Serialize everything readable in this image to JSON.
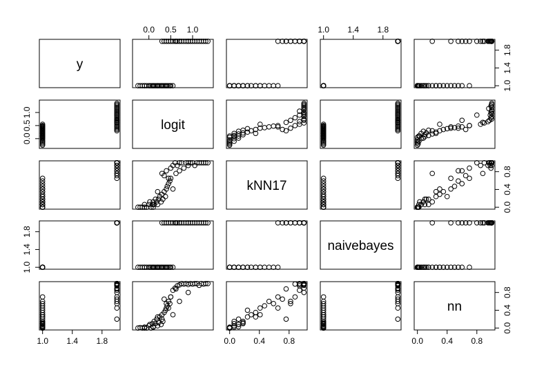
{
  "chart_data": {
    "type": "scatter",
    "plot_kind": "scatterplot-matrix",
    "variables": [
      "y",
      "logit",
      "kNN17",
      "naivebayes",
      "nn"
    ],
    "axes": {
      "y": {
        "range": [
          1,
          2
        ],
        "ticks": [
          1.0,
          1.4,
          1.8
        ],
        "tick_labels": [
          "1.0",
          "1.4",
          "1.8"
        ]
      },
      "logit": {
        "range": [
          -0.3,
          1.4
        ],
        "ticks": [
          0.0,
          0.5,
          1.0
        ],
        "tick_labels": [
          "0.0",
          "0.5",
          "1.0"
        ]
      },
      "kNN17": {
        "range": [
          0,
          1
        ],
        "ticks": [
          0.0,
          0.4,
          0.8
        ],
        "tick_labels": [
          "0.0",
          "0.4",
          "0.8"
        ]
      },
      "naivebayes": {
        "range": [
          1,
          2
        ],
        "ticks": [
          1.0,
          1.4,
          1.8
        ],
        "tick_labels": [
          "1.0",
          "1.4",
          "1.8"
        ]
      },
      "nn": {
        "range": [
          0,
          1
        ],
        "ticks": [
          0.0,
          0.4,
          0.8
        ],
        "tick_labels": [
          "0.0",
          "0.4",
          "0.8"
        ]
      }
    },
    "axis_tick_layout": {
      "top_labels": [
        "0.0",
        "0.5",
        "1.0",
        "1.0",
        "1.4",
        "1.8"
      ],
      "bottom_labels": [
        "1.0",
        "1.4",
        "1.8",
        "0.0",
        "0.4",
        "0.8",
        "0.0",
        "0.4",
        "0.8"
      ],
      "left_labels": [
        "0.0",
        "0.5",
        "1.0",
        "1.0",
        "1.4",
        "1.8"
      ],
      "right_labels": [
        "1.0",
        "1.4",
        "1.8",
        "0.0",
        "0.4",
        "0.8",
        "0.0",
        "0.4",
        "0.8"
      ]
    },
    "observations": [
      {
        "y": 1,
        "logit": -0.25,
        "kNN17": 0.0,
        "naivebayes": 1,
        "nn": 0.0
      },
      {
        "y": 1,
        "logit": -0.2,
        "kNN17": 0.0,
        "naivebayes": 1,
        "nn": 0.01
      },
      {
        "y": 1,
        "logit": -0.15,
        "kNN17": 0.0,
        "naivebayes": 1,
        "nn": 0.0
      },
      {
        "y": 1,
        "logit": -0.1,
        "kNN17": 0.06,
        "naivebayes": 1,
        "nn": 0.02
      },
      {
        "y": 1,
        "logit": -0.05,
        "kNN17": 0.0,
        "naivebayes": 1,
        "nn": 0.0
      },
      {
        "y": 1,
        "logit": 0.0,
        "kNN17": 0.06,
        "naivebayes": 1,
        "nn": 0.05
      },
      {
        "y": 1,
        "logit": 0.02,
        "kNN17": 0.12,
        "naivebayes": 1,
        "nn": 0.08
      },
      {
        "y": 1,
        "logit": 0.05,
        "kNN17": 0.0,
        "naivebayes": 1,
        "nn": 0.0
      },
      {
        "y": 1,
        "logit": 0.08,
        "kNN17": 0.06,
        "naivebayes": 1,
        "nn": 0.1
      },
      {
        "y": 1,
        "logit": 0.1,
        "kNN17": 0.12,
        "naivebayes": 1,
        "nn": 0.03
      },
      {
        "y": 1,
        "logit": 0.12,
        "kNN17": 0.06,
        "naivebayes": 1,
        "nn": 0.15
      },
      {
        "y": 1,
        "logit": 0.15,
        "kNN17": 0.18,
        "naivebayes": 1,
        "nn": 0.1
      },
      {
        "y": 1,
        "logit": 0.18,
        "kNN17": 0.12,
        "naivebayes": 1,
        "nn": 0.2
      },
      {
        "y": 1,
        "logit": 0.2,
        "kNN17": 0.06,
        "naivebayes": 1,
        "nn": 0.05
      },
      {
        "y": 1,
        "logit": 0.22,
        "kNN17": 0.18,
        "naivebayes": 1,
        "nn": 0.12
      },
      {
        "y": 1,
        "logit": 0.25,
        "kNN17": 0.24,
        "naivebayes": 1,
        "nn": 0.25
      },
      {
        "y": 1,
        "logit": 0.28,
        "kNN17": 0.12,
        "naivebayes": 1,
        "nn": 0.08
      },
      {
        "y": 1,
        "logit": 0.3,
        "kNN17": 0.29,
        "naivebayes": 1,
        "nn": 0.3
      },
      {
        "y": 1,
        "logit": 0.32,
        "kNN17": 0.18,
        "naivebayes": 1,
        "nn": 0.15
      },
      {
        "y": 1,
        "logit": 0.35,
        "kNN17": 0.35,
        "naivebayes": 1,
        "nn": 0.35
      },
      {
        "y": 1,
        "logit": 0.38,
        "kNN17": 0.24,
        "naivebayes": 1,
        "nn": 0.4
      },
      {
        "y": 1,
        "logit": 0.4,
        "kNN17": 0.41,
        "naivebayes": 1,
        "nn": 0.45
      },
      {
        "y": 1,
        "logit": 0.42,
        "kNN17": 0.47,
        "naivebayes": 1,
        "nn": 0.5
      },
      {
        "y": 1,
        "logit": 0.45,
        "kNN17": 0.53,
        "naivebayes": 1,
        "nn": 0.6
      },
      {
        "y": 1,
        "logit": 0.48,
        "kNN17": 0.59,
        "naivebayes": 1,
        "nn": 0.55
      },
      {
        "y": 1,
        "logit": 0.5,
        "kNN17": 0.65,
        "naivebayes": 1,
        "nn": 0.7
      },
      {
        "y": 1,
        "logit": 0.55,
        "kNN17": 0.41,
        "naivebayes": 1,
        "nn": 0.3
      },
      {
        "y": 1,
        "logit": 0.2,
        "kNN17": 0.35,
        "naivebayes": 1,
        "nn": 0.25
      },
      {
        "y": 1,
        "logit": 0.1,
        "kNN17": 0.0,
        "naivebayes": 1,
        "nn": 0.02
      },
      {
        "y": 1,
        "logit": -0.1,
        "kNN17": 0.0,
        "naivebayes": 1,
        "nn": 0.0
      },
      {
        "y": 2,
        "logit": 0.3,
        "kNN17": 0.76,
        "naivebayes": 2,
        "nn": 0.2
      },
      {
        "y": 2,
        "logit": 0.4,
        "kNN17": 0.82,
        "naivebayes": 2,
        "nn": 0.55
      },
      {
        "y": 2,
        "logit": 0.5,
        "kNN17": 0.88,
        "naivebayes": 2,
        "nn": 0.7
      },
      {
        "y": 2,
        "logit": 0.55,
        "kNN17": 0.94,
        "naivebayes": 2,
        "nn": 0.85
      },
      {
        "y": 2,
        "logit": 0.6,
        "kNN17": 1.0,
        "naivebayes": 2,
        "nn": 0.9
      },
      {
        "y": 2,
        "logit": 0.65,
        "kNN17": 0.94,
        "naivebayes": 2,
        "nn": 0.95
      },
      {
        "y": 2,
        "logit": 0.7,
        "kNN17": 1.0,
        "naivebayes": 2,
        "nn": 0.97
      },
      {
        "y": 2,
        "logit": 0.75,
        "kNN17": 1.0,
        "naivebayes": 2,
        "nn": 1.0
      },
      {
        "y": 2,
        "logit": 0.8,
        "kNN17": 0.88,
        "naivebayes": 2,
        "nn": 0.99
      },
      {
        "y": 2,
        "logit": 0.85,
        "kNN17": 1.0,
        "naivebayes": 2,
        "nn": 1.0
      },
      {
        "y": 2,
        "logit": 0.9,
        "kNN17": 0.94,
        "naivebayes": 2,
        "nn": 0.98
      },
      {
        "y": 2,
        "logit": 0.95,
        "kNN17": 1.0,
        "naivebayes": 2,
        "nn": 1.0
      },
      {
        "y": 2,
        "logit": 1.0,
        "kNN17": 1.0,
        "naivebayes": 2,
        "nn": 0.99
      },
      {
        "y": 2,
        "logit": 1.05,
        "kNN17": 0.94,
        "naivebayes": 2,
        "nn": 1.0
      },
      {
        "y": 2,
        "logit": 1.1,
        "kNN17": 1.0,
        "naivebayes": 2,
        "nn": 1.0
      },
      {
        "y": 2,
        "logit": 1.15,
        "kNN17": 1.0,
        "naivebayes": 2,
        "nn": 0.96
      },
      {
        "y": 2,
        "logit": 1.2,
        "kNN17": 1.0,
        "naivebayes": 2,
        "nn": 1.0
      },
      {
        "y": 2,
        "logit": 1.25,
        "kNN17": 1.0,
        "naivebayes": 2,
        "nn": 0.99
      },
      {
        "y": 2,
        "logit": 1.3,
        "kNN17": 1.0,
        "naivebayes": 2,
        "nn": 1.0
      },
      {
        "y": 2,
        "logit": 1.35,
        "kNN17": 1.0,
        "naivebayes": 2,
        "nn": 1.0
      },
      {
        "y": 2,
        "logit": 0.45,
        "kNN17": 0.65,
        "naivebayes": 2,
        "nn": 0.45
      },
      {
        "y": 2,
        "logit": 0.35,
        "kNN17": 0.71,
        "naivebayes": 2,
        "nn": 0.65
      },
      {
        "y": 2,
        "logit": 0.7,
        "kNN17": 0.82,
        "naivebayes": 2,
        "nn": 0.6
      },
      {
        "y": 2,
        "logit": 0.9,
        "kNN17": 1.0,
        "naivebayes": 2,
        "nn": 0.8
      },
      {
        "y": 2,
        "logit": 0.62,
        "kNN17": 0.76,
        "naivebayes": 2,
        "nn": 0.88
      }
    ]
  }
}
